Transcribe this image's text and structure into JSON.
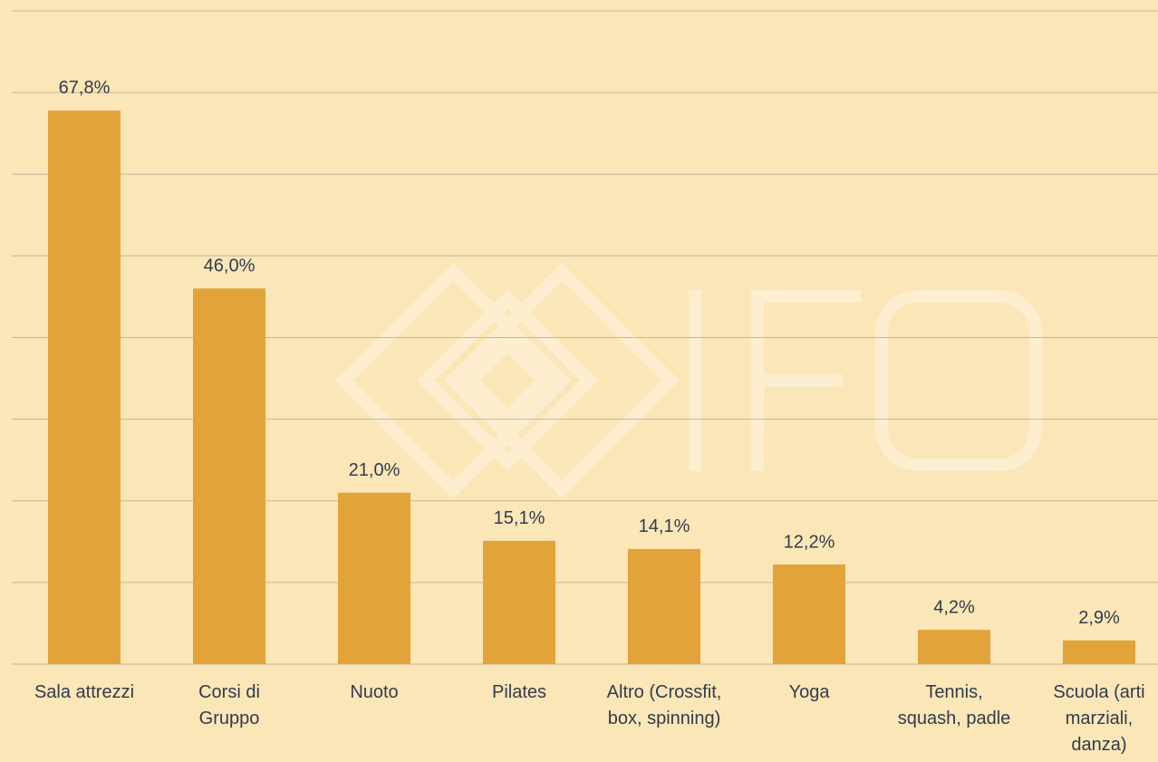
{
  "chart_data": {
    "type": "bar",
    "categories": [
      "Sala attrezzi",
      "Corsi di\nGruppo",
      "Nuoto",
      "Pilates",
      "Altro (Crossfit,\nbox, spinning)",
      "Yoga",
      "Tennis,\nsquash, padle",
      "Scuola (arti\nmarziali,\ndanza)"
    ],
    "values": [
      67.8,
      46.0,
      21.0,
      15.1,
      14.1,
      12.2,
      4.2,
      2.9
    ],
    "value_labels": [
      "67,8%",
      "46,0%",
      "21,0%",
      "15,1%",
      "14,1%",
      "12,2%",
      "4,2%",
      "2,9%"
    ],
    "color": "#e3a33b",
    "ylim": [
      0,
      80
    ],
    "yticks": [
      0,
      10,
      20,
      30,
      40,
      50,
      60,
      70,
      80
    ],
    "grid": true
  }
}
